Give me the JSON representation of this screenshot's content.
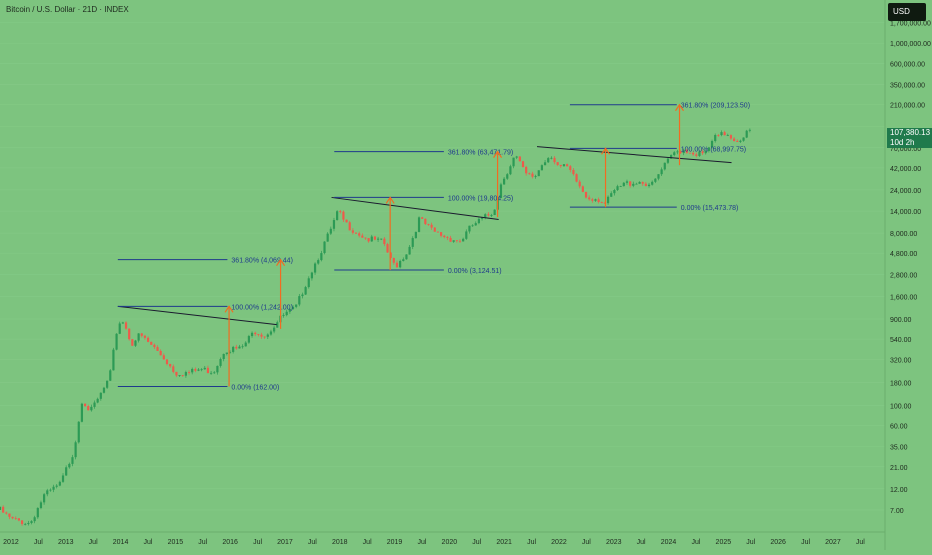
{
  "symbol_title": "Bitcoin / U.S. Dollar · 21D · INDEX",
  "currency": "USD",
  "last_price": "107,380.13",
  "countdown": "10d 2h",
  "colors": {
    "background": "#7dc47f",
    "up": "#2c9a55",
    "down": "#ee5a4a",
    "trend_line": "#1a1a2e",
    "fib_line": "#1f3a8c",
    "fib_text": "#1f3a8c",
    "arrow": "#f26b21",
    "axis_text": "#1e2a1e",
    "price_tag": "#1f7a4c"
  },
  "chart_data": {
    "type": "candlestick",
    "scale": "log",
    "ylim": [
      4,
      3000000
    ],
    "xlim": [
      2011.8,
      2027.95
    ],
    "y_ticks": [
      7,
      12,
      21,
      35,
      60,
      100,
      180,
      320,
      540,
      900,
      1600,
      2800,
      4800,
      8000,
      14000,
      24000,
      42000,
      70000,
      120000,
      210000,
      350000,
      600000,
      1000000,
      1700000
    ],
    "y_tick_labels": [
      "7.00",
      "12.00",
      "21.00",
      "35.00",
      "60.00",
      "100.00",
      "180.00",
      "320.00",
      "540.00",
      "900.00",
      "1,600.00",
      "2,800.00",
      "4,800.00",
      "8,000.00",
      "14,000.00",
      "24,000.00",
      "42,000.00",
      "70,000.00",
      "",
      "210,000.00",
      "350,000.00",
      "600,000.00",
      "1,000,000.00",
      "1,700,000.00"
    ],
    "x_ticks": [
      {
        "t": 2012.0,
        "label": "2012"
      },
      {
        "t": 2012.5,
        "label": "Jul"
      },
      {
        "t": 2013.0,
        "label": "2013"
      },
      {
        "t": 2013.5,
        "label": "Jul"
      },
      {
        "t": 2014.0,
        "label": "2014"
      },
      {
        "t": 2014.5,
        "label": "Jul"
      },
      {
        "t": 2015.0,
        "label": "2015"
      },
      {
        "t": 2015.5,
        "label": "Jul"
      },
      {
        "t": 2016.0,
        "label": "2016"
      },
      {
        "t": 2016.5,
        "label": "Jul"
      },
      {
        "t": 2017.0,
        "label": "2017"
      },
      {
        "t": 2017.5,
        "label": "Jul"
      },
      {
        "t": 2018.0,
        "label": "2018"
      },
      {
        "t": 2018.5,
        "label": "Jul"
      },
      {
        "t": 2019.0,
        "label": "2019"
      },
      {
        "t": 2019.5,
        "label": "Jul"
      },
      {
        "t": 2020.0,
        "label": "2020"
      },
      {
        "t": 2020.5,
        "label": "Jul"
      },
      {
        "t": 2021.0,
        "label": "2021"
      },
      {
        "t": 2021.5,
        "label": "Jul"
      },
      {
        "t": 2022.0,
        "label": "2022"
      },
      {
        "t": 2022.5,
        "label": "Jul"
      },
      {
        "t": 2023.0,
        "label": "2023"
      },
      {
        "t": 2023.5,
        "label": "Jul"
      },
      {
        "t": 2024.0,
        "label": "2024"
      },
      {
        "t": 2024.5,
        "label": "Jul"
      },
      {
        "t": 2025.0,
        "label": "2025"
      },
      {
        "t": 2025.5,
        "label": "Jul"
      },
      {
        "t": 2026.0,
        "label": "2026"
      },
      {
        "t": 2026.5,
        "label": "Jul"
      },
      {
        "t": 2027.0,
        "label": "2027"
      },
      {
        "t": 2027.5,
        "label": "Jul"
      }
    ],
    "anchors": [
      [
        2011.8,
        7
      ],
      [
        2012.0,
        5.5
      ],
      [
        2012.35,
        5
      ],
      [
        2012.6,
        10
      ],
      [
        2012.9,
        13.5
      ],
      [
        2013.15,
        32
      ],
      [
        2013.3,
        120
      ],
      [
        2013.45,
        85
      ],
      [
        2013.6,
        120
      ],
      [
        2013.8,
        200
      ],
      [
        2013.95,
        800
      ],
      [
        2014.05,
        860
      ],
      [
        2014.2,
        480
      ],
      [
        2014.35,
        600
      ],
      [
        2014.6,
        440
      ],
      [
        2014.8,
        330
      ],
      [
        2015.0,
        230
      ],
      [
        2015.25,
        230
      ],
      [
        2015.45,
        250
      ],
      [
        2015.7,
        240
      ],
      [
        2015.9,
        420
      ],
      [
        2016.2,
        420
      ],
      [
        2016.45,
        670
      ],
      [
        2016.65,
        600
      ],
      [
        2016.95,
        960
      ],
      [
        2017.2,
        1200
      ],
      [
        2017.4,
        2400
      ],
      [
        2017.6,
        4300
      ],
      [
        2017.85,
        9000
      ],
      [
        2017.97,
        14000
      ],
      [
        2018.1,
        10200
      ],
      [
        2018.3,
        8300
      ],
      [
        2018.5,
        6900
      ],
      [
        2018.8,
        6300
      ],
      [
        2018.95,
        3700
      ],
      [
        2019.05,
        3600
      ],
      [
        2019.25,
        5200
      ],
      [
        2019.45,
        11500
      ],
      [
        2019.7,
        8300
      ],
      [
        2019.95,
        7200
      ],
      [
        2020.2,
        6500
      ],
      [
        2020.4,
        9500
      ],
      [
        2020.6,
        11400
      ],
      [
        2020.8,
        13600
      ],
      [
        2020.95,
        29000
      ],
      [
        2021.2,
        58000
      ],
      [
        2021.4,
        35000
      ],
      [
        2021.55,
        33000
      ],
      [
        2021.7,
        47000
      ],
      [
        2021.85,
        60000
      ],
      [
        2022.0,
        43000
      ],
      [
        2022.15,
        42000
      ],
      [
        2022.3,
        31000
      ],
      [
        2022.5,
        20000
      ],
      [
        2022.7,
        19500
      ],
      [
        2022.85,
        16800
      ],
      [
        2023.0,
        23000
      ],
      [
        2023.2,
        28000
      ],
      [
        2023.45,
        30000
      ],
      [
        2023.7,
        27000
      ],
      [
        2023.9,
        42000
      ],
      [
        2024.1,
        61000
      ],
      [
        2024.25,
        68000
      ],
      [
        2024.45,
        62000
      ],
      [
        2024.65,
        58000
      ],
      [
        2024.85,
        90000
      ],
      [
        2025.05,
        102000
      ],
      [
        2025.25,
        84000
      ],
      [
        2025.45,
        105000
      ],
      [
        2025.5,
        107380
      ]
    ],
    "trend_lines": [
      {
        "t1": 2013.95,
        "p1": 1242,
        "t2": 2016.85,
        "p2": 780
      },
      {
        "t1": 2017.85,
        "p1": 19804,
        "t2": 2020.9,
        "p2": 11300
      },
      {
        "t1": 2021.6,
        "p1": 72000,
        "t2": 2025.15,
        "p2": 48000
      }
    ],
    "fib_levels": [
      {
        "label": "361.80% (4,069.44)",
        "price": 4069.44,
        "t1": 2013.95,
        "t2": 2015.95
      },
      {
        "label": "100.00% (1,242.00)",
        "price": 1242.0,
        "t1": 2013.95,
        "t2": 2015.95
      },
      {
        "label": "0.00% (162.00)",
        "price": 162.0,
        "t1": 2013.95,
        "t2": 2015.95
      },
      {
        "label": "361.80% (63,471.79)",
        "price": 63471.79,
        "t1": 2017.9,
        "t2": 2019.9
      },
      {
        "label": "100.00% (19,804.25)",
        "price": 19804.25,
        "t1": 2017.9,
        "t2": 2019.9
      },
      {
        "label": "0.00% (3,124.51)",
        "price": 3124.51,
        "t1": 2017.9,
        "t2": 2019.9
      },
      {
        "label": "361.80% (209,123.50)",
        "price": 209123.5,
        "t1": 2022.2,
        "t2": 2024.15
      },
      {
        "label": "100.00% (68,997.75)",
        "price": 68997.75,
        "t1": 2022.2,
        "t2": 2024.15
      },
      {
        "label": "0.00% (15,473.78)",
        "price": 15473.78,
        "t1": 2022.2,
        "t2": 2024.15
      }
    ],
    "arrows": [
      {
        "t": 2015.98,
        "from": 162,
        "to": 1242
      },
      {
        "t": 2016.92,
        "from": 700,
        "to": 4069.44
      },
      {
        "t": 2018.92,
        "from": 3124.51,
        "to": 19804.25
      },
      {
        "t": 2020.88,
        "from": 12000,
        "to": 63471.79
      },
      {
        "t": 2022.85,
        "from": 15473.78,
        "to": 68997.75
      },
      {
        "t": 2024.2,
        "from": 45000,
        "to": 209123.5
      }
    ]
  }
}
